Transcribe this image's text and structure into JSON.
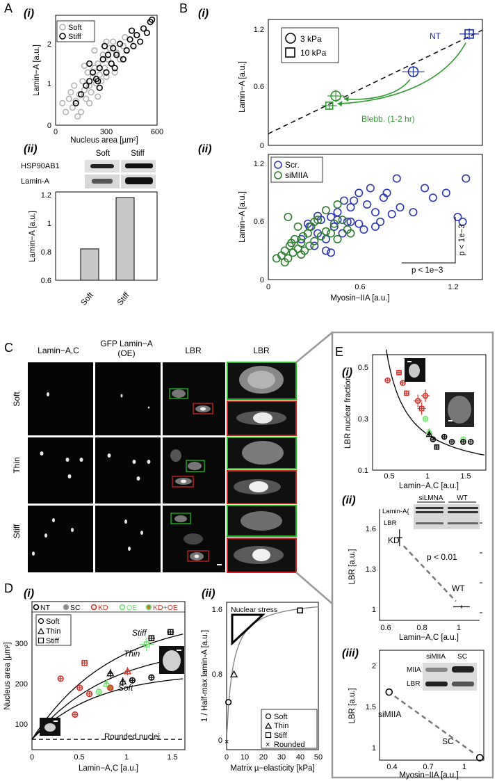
{
  "panel_labels": {
    "A": "A",
    "B": "B",
    "C": "C",
    "D": "D",
    "E": "E"
  },
  "sub_labels": {
    "i": "(i)",
    "ii": "(ii)",
    "iii": "(iii)"
  },
  "colors": {
    "soft": "#b3b3b3",
    "stiff": "#000000",
    "scr": "#2b35b8",
    "simiia": "#2e7d2e",
    "green": "#2d9a2d",
    "blue": "#1b2ca8",
    "red": "#d9342b",
    "light_green": "#6ee36e",
    "bar": "#c8c8c8",
    "box": "#9a9a9a"
  },
  "A_i": {
    "xlabel": "Nucleus area [µm²]",
    "ylabel": "Lamin−A [a.u.]",
    "xticks": [
      "0",
      "300",
      "600"
    ],
    "yticks": [
      "0",
      "1",
      "2"
    ],
    "legend": [
      "Soft",
      "Stiff"
    ]
  },
  "A_ii": {
    "blot_rows": [
      "HSP90AB1",
      "Lamin-A"
    ],
    "cols": [
      "Soft",
      "Stiff"
    ],
    "ylabel": "Lamin−A [a.u.]",
    "yticks": [
      "0.6",
      "0.8",
      "1",
      "1.2"
    ]
  },
  "B_i": {
    "ylabel": "Lamin−A [a.u.]",
    "yticks": [
      "0",
      "0.6",
      "1.2"
    ],
    "legend": [
      "3 kPa",
      "10 kPa"
    ],
    "nt_label": "NT",
    "blebb_label": "Blebb. (1-2 hr)"
  },
  "B_ii": {
    "xlabel": "Myosin−IIA [a.u.]",
    "ylabel": "Lamin−A [a.u.]",
    "xticks": [
      "0",
      "0.6",
      "1.2"
    ],
    "yticks": [
      "0",
      "0.6",
      "1.2"
    ],
    "legend": [
      "Scr.",
      "siMIIA"
    ],
    "p_x": "p < 1e−3",
    "p_y": "p < 1e−3"
  },
  "C": {
    "col_headers": [
      "Lamin−A,C",
      "GFP Lamin−A",
      "(OE)",
      "LBR",
      "LBR"
    ],
    "row_labels": [
      "Soft",
      "Thin",
      "Stiff"
    ]
  },
  "D_i": {
    "xlabel": "Lamin−A,C [a.u.]",
    "ylabel": "Nucleus area [µm²]",
    "xticks": [
      "0",
      "0.5",
      "1",
      "1.5"
    ],
    "yticks": [
      "100",
      "200",
      "300"
    ],
    "top_legend": [
      "NT",
      "SC",
      "KD",
      "OE",
      "KD+OE"
    ],
    "legend": [
      "Soft",
      "Thin",
      "Stiff"
    ],
    "curve_labels": [
      "Stiff",
      "Thin",
      "Soft"
    ],
    "rounded_label": "Rounded nuclei"
  },
  "D_ii": {
    "xlabel": "Matrix µ−elasticity [kPa]",
    "ylabel": "1 / Half-max lamin-A [a.u.]",
    "xticks": [
      "0",
      "10",
      "20",
      "30",
      "40",
      "50"
    ],
    "yticks": [
      "0",
      "0.8",
      "1.6"
    ],
    "inset_label": "Nuclear stress",
    "legend": [
      "Soft",
      "Thin",
      "Stiff",
      "Rounded"
    ]
  },
  "E_i": {
    "xlabel": "Lamin−A,C [a.u.]",
    "ylabel": "LBR nuclear fraction",
    "xticks": [
      "0.5",
      "1",
      "1.5"
    ],
    "yticks": [
      "0.1",
      "0.3",
      "0.5"
    ]
  },
  "E_ii": {
    "xlabel": "Lamin−A,C [a.u.]",
    "ylabel": "LBR [a.u.]",
    "xticks": [
      "0.6",
      "0.8",
      "1"
    ],
    "yticks": [
      "1",
      "1.3",
      "1.6"
    ],
    "blot_cols": [
      "siLMNA",
      "WT"
    ],
    "blot_rows": [
      "Lamin-A{",
      "LBR"
    ],
    "kd_label": "KD",
    "wt_label": "WT",
    "p_label": "p < 0.01"
  },
  "E_iii": {
    "xlabel": "Myosin−IIA [a.u.]",
    "ylabel": "LBR [a.u.]",
    "xticks": [
      "0.4",
      "0.7",
      "1"
    ],
    "yticks": [
      "1",
      "1.5",
      "2"
    ],
    "blot_cols": [
      "siMIIA",
      "SC"
    ],
    "blot_rows": [
      "MIIA",
      "LBR"
    ],
    "simiia_label": "siMIIA",
    "sc_label": "SC"
  },
  "chart_data": [
    {
      "type": "scatter",
      "panel": "A(i)",
      "xlabel": "Nucleus area [µm²]",
      "ylabel": "Lamin−A [a.u.]",
      "xlim": [
        0,
        600
      ],
      "ylim": [
        0,
        2.5
      ],
      "series": [
        {
          "name": "Soft",
          "points": [
            [
              40,
              0.5
            ],
            [
              60,
              0.3
            ],
            [
              80,
              0.6
            ],
            [
              100,
              0.4
            ],
            [
              110,
              0.9
            ],
            [
              120,
              0.55
            ],
            [
              140,
              0.7
            ],
            [
              150,
              0.3
            ],
            [
              160,
              1.0
            ],
            [
              170,
              0.8
            ],
            [
              180,
              0.6
            ],
            [
              190,
              1.2
            ],
            [
              200,
              0.9
            ],
            [
              210,
              0.75
            ],
            [
              220,
              1.1
            ],
            [
              230,
              1.3
            ],
            [
              240,
              0.95
            ],
            [
              250,
              1.4
            ],
            [
              260,
              1.15
            ],
            [
              270,
              1.0
            ],
            [
              280,
              1.6
            ],
            [
              290,
              1.3
            ],
            [
              300,
              1.1
            ],
            [
              310,
              1.5
            ],
            [
              320,
              1.75
            ],
            [
              330,
              1.4
            ],
            [
              340,
              1.9
            ],
            [
              350,
              1.2
            ],
            [
              360,
              1.65
            ],
            [
              380,
              1.5
            ],
            [
              400,
              1.8
            ],
            [
              130,
              0.2
            ],
            [
              90,
              0.75
            ],
            [
              200,
              0.5
            ],
            [
              250,
              0.65
            ],
            [
              170,
              1.35
            ],
            [
              300,
              1.9
            ],
            [
              410,
              2.0
            ],
            [
              230,
              1.7
            ]
          ]
        },
        {
          "name": "Stiff",
          "points": [
            [
              120,
              0.5
            ],
            [
              150,
              0.7
            ],
            [
              180,
              0.9
            ],
            [
              200,
              1.0
            ],
            [
              220,
              1.2
            ],
            [
              240,
              1.05
            ],
            [
              260,
              1.3
            ],
            [
              280,
              1.5
            ],
            [
              300,
              1.2
            ],
            [
              310,
              1.6
            ],
            [
              330,
              1.4
            ],
            [
              340,
              1.75
            ],
            [
              360,
              1.6
            ],
            [
              380,
              1.85
            ],
            [
              400,
              1.5
            ],
            [
              420,
              1.7
            ],
            [
              440,
              1.95
            ],
            [
              460,
              1.8
            ],
            [
              480,
              2.05
            ],
            [
              500,
              1.9
            ],
            [
              520,
              2.2
            ],
            [
              540,
              2.1
            ],
            [
              560,
              2.35
            ],
            [
              570,
              2.4
            ],
            [
              250,
              1.0
            ],
            [
              290,
              1.8
            ],
            [
              350,
              1.3
            ],
            [
              260,
              0.85
            ],
            [
              200,
              1.4
            ],
            [
              450,
              2.15
            ]
          ]
        }
      ]
    },
    {
      "type": "bar",
      "panel": "A(ii)",
      "categories": [
        "Soft",
        "Stiff"
      ],
      "values": [
        0.82,
        1.18
      ],
      "ylabel": "Lamin−A [a.u.]",
      "ylim": [
        0.6,
        1.2
      ]
    },
    {
      "type": "scatter",
      "panel": "B(i)",
      "ylabel": "Lamin−A [a.u.]",
      "xlim": [
        0,
        1.3
      ],
      "ylim": [
        0,
        1.3
      ],
      "series": [
        {
          "name": "3 kPa",
          "points": [
            [
              0.88,
              0.76
            ],
            [
              0.41,
              0.51
            ]
          ]
        },
        {
          "name": "10 kPa",
          "points": [
            [
              1.22,
              1.15
            ],
            [
              0.37,
              0.41
            ]
          ]
        }
      ],
      "trend_line": [
        [
          0,
          0.12
        ],
        [
          1.3,
          1.19
        ]
      ],
      "annotations": [
        "NT",
        "Blebb. (1-2 hr)"
      ]
    },
    {
      "type": "scatter",
      "panel": "B(ii)",
      "xlabel": "Myosin−IIA [a.u.]",
      "ylabel": "Lamin−A [a.u.]",
      "xlim": [
        0,
        1.3
      ],
      "ylim": [
        0,
        1.3
      ],
      "series": [
        {
          "name": "Scr.",
          "points": [
            [
              0.2,
              0.42
            ],
            [
              0.25,
              0.55
            ],
            [
              0.3,
              0.48
            ],
            [
              0.32,
              0.62
            ],
            [
              0.35,
              0.3
            ],
            [
              0.38,
              0.65
            ],
            [
              0.4,
              0.55
            ],
            [
              0.42,
              0.7
            ],
            [
              0.45,
              0.48
            ],
            [
              0.48,
              0.6
            ],
            [
              0.5,
              0.75
            ],
            [
              0.52,
              0.82
            ],
            [
              0.55,
              0.58
            ],
            [
              0.6,
              0.78
            ],
            [
              0.62,
              0.95
            ],
            [
              0.65,
              0.7
            ],
            [
              0.68,
              0.6
            ],
            [
              0.7,
              0.85
            ],
            [
              0.75,
              0.68
            ],
            [
              0.78,
              1.05
            ],
            [
              0.8,
              0.75
            ],
            [
              0.88,
              0.7
            ],
            [
              0.95,
              0.95
            ],
            [
              1.0,
              0.85
            ],
            [
              1.08,
              0.9
            ],
            [
              1.2,
              1.05
            ],
            [
              1.15,
              0.65
            ],
            [
              1.18,
              0.6
            ],
            [
              0.28,
              0.35
            ],
            [
              0.35,
              0.42
            ],
            [
              0.46,
              0.82
            ],
            [
              0.55,
              0.9
            ],
            [
              0.42,
              0.62
            ],
            [
              0.58,
              0.52
            ],
            [
              0.65,
              0.55
            ],
            [
              0.3,
              0.66
            ],
            [
              0.24,
              0.58
            ],
            [
              0.38,
              0.28
            ],
            [
              0.5,
              0.6
            ],
            [
              0.72,
              0.9
            ]
          ]
        },
        {
          "name": "siMIIA",
          "points": [
            [
              0.05,
              0.22
            ],
            [
              0.08,
              0.25
            ],
            [
              0.1,
              0.3
            ],
            [
              0.12,
              0.22
            ],
            [
              0.13,
              0.35
            ],
            [
              0.15,
              0.28
            ],
            [
              0.16,
              0.42
            ],
            [
              0.18,
              0.32
            ],
            [
              0.2,
              0.38
            ],
            [
              0.21,
              0.45
            ],
            [
              0.22,
              0.3
            ],
            [
              0.24,
              0.48
            ],
            [
              0.25,
              0.35
            ],
            [
              0.26,
              0.55
            ],
            [
              0.28,
              0.4
            ],
            [
              0.3,
              0.62
            ],
            [
              0.32,
              0.45
            ],
            [
              0.35,
              0.5
            ],
            [
              0.38,
              0.48
            ],
            [
              0.4,
              0.58
            ],
            [
              0.42,
              0.78
            ],
            [
              0.45,
              0.62
            ],
            [
              0.48,
              0.52
            ],
            [
              0.5,
              0.48
            ],
            [
              0.12,
              0.65
            ],
            [
              0.18,
              0.55
            ],
            [
              0.28,
              0.6
            ],
            [
              0.35,
              0.72
            ],
            [
              0.42,
              0.42
            ],
            [
              0.1,
              0.18
            ],
            [
              0.2,
              0.26
            ],
            [
              0.14,
              0.38
            ]
          ]
        }
      ]
    },
    {
      "type": "scatter",
      "panel": "D(i)",
      "xlabel": "Lamin−A,C [a.u.]",
      "ylabel": "Nucleus area [µm²]",
      "xlim": [
        0,
        1.6
      ],
      "ylim": [
        50,
        370
      ],
      "series": [
        {
          "name": "Stiff",
          "points": [
            [
              1.2,
              305
            ],
            [
              1.25,
              320
            ],
            [
              1.45,
              335
            ],
            [
              0.55,
              260
            ]
          ]
        },
        {
          "name": "Thin",
          "points": [
            [
              0.82,
              235
            ],
            [
              0.95,
              215
            ],
            [
              1.0,
              240
            ],
            [
              0.78,
              210
            ]
          ]
        },
        {
          "name": "Soft",
          "points": [
            [
              0.3,
              222
            ],
            [
              0.45,
              135
            ],
            [
              0.5,
              200
            ],
            [
              0.6,
              185
            ],
            [
              0.7,
              190
            ],
            [
              0.82,
              200
            ],
            [
              1.05,
              218
            ],
            [
              1.25,
              225
            ]
          ]
        }
      ],
      "rounded_nuclei": 75
    },
    {
      "type": "scatter",
      "panel": "D(ii)",
      "xlabel": "Matrix µ−elasticity [kPa]",
      "ylabel": "1 / Half-max lamin-A [a.u.]",
      "xlim": [
        0,
        50
      ],
      "ylim": [
        -0.1,
        1.7
      ],
      "series": [
        {
          "name": "Soft",
          "points": [
            [
              1,
              0.48
            ]
          ]
        },
        {
          "name": "Thin",
          "points": [
            [
              4,
              0.82
            ]
          ]
        },
        {
          "name": "Stiff",
          "points": [
            [
              40,
              1.6
            ]
          ]
        },
        {
          "name": "Rounded",
          "points": [
            [
              0,
              0
            ]
          ]
        }
      ]
    },
    {
      "type": "scatter",
      "panel": "E(i)",
      "xlabel": "Lamin−A,C [a.u.]",
      "ylabel": "LBR nuclear fraction",
      "xlim": [
        0.1,
        1.6
      ],
      "ylim": [
        0.1,
        0.55
      ],
      "series": [
        {
          "name": "KD",
          "points": [
            [
              0.3,
              0.45
            ],
            [
              0.45,
              0.48
            ],
            [
              0.5,
              0.44
            ],
            [
              0.55,
              0.4
            ],
            [
              0.7,
              0.37
            ],
            [
              0.75,
              0.34
            ],
            [
              0.8,
              0.39
            ]
          ]
        },
        {
          "name": "OE",
          "points": [
            [
              0.8,
              0.3
            ],
            [
              0.85,
              0.25
            ],
            [
              1.3,
              0.22
            ]
          ]
        },
        {
          "name": "NT/SC",
          "points": [
            [
              0.85,
              0.24
            ],
            [
              0.9,
              0.22
            ],
            [
              0.95,
              0.19
            ],
            [
              1.05,
              0.23
            ],
            [
              1.15,
              0.21
            ],
            [
              1.3,
              0.21
            ],
            [
              1.4,
              0.21
            ]
          ]
        }
      ]
    },
    {
      "type": "scatter",
      "panel": "E(ii)",
      "xlabel": "Lamin−A,C [a.u.]",
      "ylabel": "LBR [a.u.]",
      "xlim": [
        0.55,
        1.1
      ],
      "ylim": [
        0.9,
        1.7
      ],
      "series": [
        {
          "name": "KD",
          "points": [
            [
              0.66,
              1.51
            ]
          ]
        },
        {
          "name": "WT",
          "points": [
            [
              1.0,
              1.0
            ]
          ]
        }
      ]
    },
    {
      "type": "scatter",
      "panel": "E(iii)",
      "xlabel": "Myosin−IIA [a.u.]",
      "ylabel": "LBR [a.u.]",
      "xlim": [
        0.3,
        1.1
      ],
      "ylim": [
        0.8,
        2.2
      ],
      "series": [
        {
          "name": "siMIIA",
          "points": [
            [
              0.4,
              1.8
            ]
          ]
        },
        {
          "name": "SC",
          "points": [
            [
              1.0,
              1.0
            ]
          ]
        }
      ]
    }
  ]
}
